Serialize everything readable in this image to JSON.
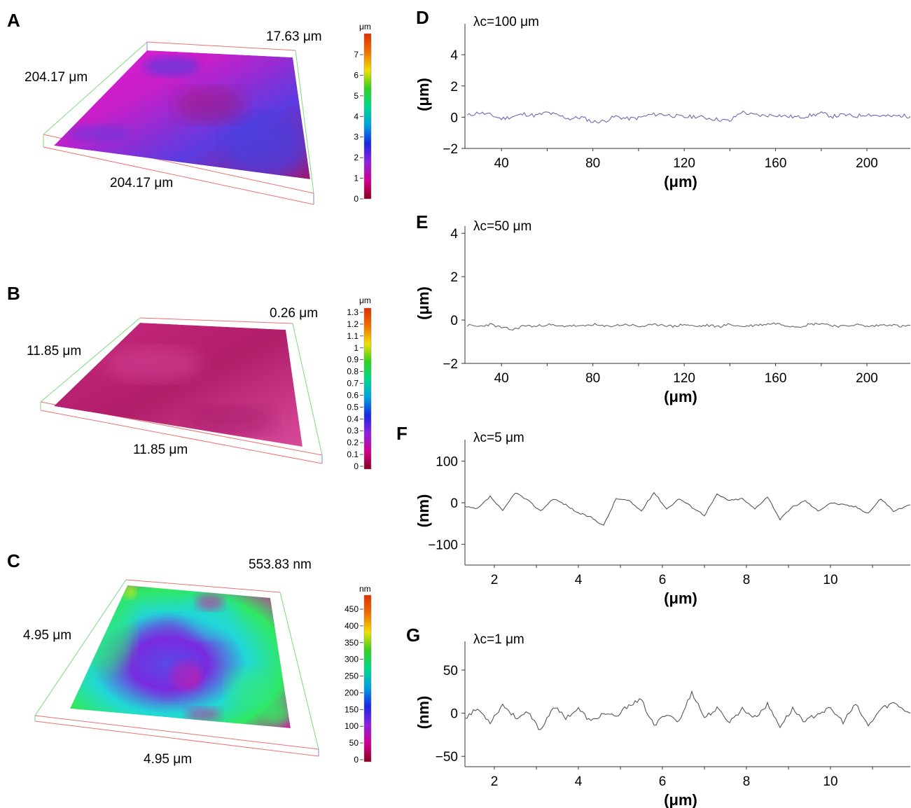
{
  "panels": {
    "A": {
      "letter": "A",
      "x_dim": "204.17 μm",
      "y_dim": "204.17 μm",
      "z_dim": "17.63 μm",
      "colorbar": {
        "unit": "μm",
        "ticks": [
          "0",
          "1",
          "2",
          "3",
          "4",
          "5",
          "6",
          "7"
        ]
      }
    },
    "B": {
      "letter": "B",
      "x_dim": "11.85 μm",
      "y_dim": "11.85 μm",
      "z_dim": "0.26 μm",
      "colorbar": {
        "unit": "μm",
        "ticks": [
          "0",
          "0.1",
          "0.2",
          "0.3",
          "0.4",
          "0.5",
          "0.6",
          "0.7",
          "0.8",
          "0.9",
          "1",
          "1.1",
          "1.2",
          "1.3"
        ]
      }
    },
    "C": {
      "letter": "C",
      "x_dim": "4.95 μm",
      "y_dim": "4.95 μm",
      "z_dim": "553.83 nm",
      "colorbar": {
        "unit": "nm",
        "ticks": [
          "0",
          "50",
          "100",
          "150",
          "200",
          "250",
          "300",
          "350",
          "400",
          "450"
        ]
      }
    }
  },
  "surface_colors": {
    "A": [
      "#e020d8",
      "#c81ec8",
      "#5a3ce0",
      "#a01870"
    ],
    "B": [
      "#c8287e",
      "#b01e6a",
      "#d84a9a"
    ],
    "C": [
      "#3a6af0",
      "#7a2ae0",
      "#20d8d8",
      "#30e860",
      "#d020a0"
    ]
  },
  "colorbar_gradient": [
    "#8b0020",
    "#d0008e",
    "#9020e0",
    "#1a28e0",
    "#00a0e0",
    "#00d890",
    "#30d020",
    "#f0e000",
    "#f07000",
    "#e03000"
  ],
  "chart_data": [
    {
      "type": "line",
      "letter": "D",
      "title": "λc=100 μm",
      "xlabel": "(μm)",
      "ylabel": "(μm)",
      "xlim": [
        24,
        219
      ],
      "ylim": [
        -2,
        5.8
      ],
      "xticks": [
        40,
        80,
        120,
        160,
        200
      ],
      "yticks": [
        -2,
        0,
        2,
        4
      ],
      "ytick_labels": [
        "−2",
        "0",
        "2",
        "4"
      ],
      "color": "#6a6ab0",
      "seed": 11,
      "amplitude": 0.25,
      "x": [
        25,
        30,
        35,
        40,
        45,
        50,
        55,
        60,
        65,
        70,
        75,
        80,
        85,
        90,
        95,
        100,
        105,
        110,
        115,
        120,
        125,
        130,
        135,
        140,
        145,
        150,
        155,
        160,
        165,
        170,
        175,
        180,
        185,
        190,
        195,
        200,
        205,
        210,
        215,
        219
      ],
      "y": [
        0.1,
        0.3,
        0.15,
        -0.1,
        0.05,
        0.2,
        0.1,
        0.3,
        0.1,
        -0.1,
        0.0,
        -0.3,
        -0.25,
        0.05,
        -0.1,
        -0.05,
        0.15,
        0.2,
        0.1,
        0.0,
        0.05,
        -0.05,
        -0.15,
        -0.25,
        0.35,
        0.15,
        0.1,
        0.15,
        0.05,
        0.0,
        0.1,
        0.25,
        0.05,
        0.15,
        0.05,
        0.2,
        0.1,
        0.05,
        0.1,
        0.05
      ]
    },
    {
      "type": "line",
      "letter": "E",
      "title": "λc=50 μm",
      "xlabel": "(μm)",
      "ylabel": "(μm)",
      "xlim": [
        24,
        219
      ],
      "ylim": [
        -2,
        4.2
      ],
      "xticks": [
        40,
        80,
        120,
        160,
        200
      ],
      "yticks": [
        -2,
        0,
        2,
        4
      ],
      "ytick_labels": [
        "−2",
        "0",
        "2",
        "4"
      ],
      "color": "#666666",
      "seed": 23,
      "amplitude": 0.12,
      "x": [
        25,
        30,
        35,
        40,
        45,
        50,
        55,
        60,
        65,
        70,
        75,
        80,
        85,
        90,
        95,
        100,
        105,
        110,
        115,
        120,
        125,
        130,
        135,
        140,
        145,
        150,
        155,
        160,
        165,
        170,
        175,
        180,
        185,
        190,
        195,
        200,
        205,
        210,
        215,
        219
      ],
      "y": [
        -0.25,
        -0.3,
        -0.2,
        -0.35,
        -0.45,
        -0.25,
        -0.3,
        -0.2,
        -0.3,
        -0.25,
        -0.3,
        -0.2,
        -0.3,
        -0.25,
        -0.2,
        -0.3,
        -0.25,
        -0.2,
        -0.3,
        -0.2,
        -0.3,
        -0.25,
        -0.3,
        -0.2,
        -0.3,
        -0.25,
        -0.2,
        -0.15,
        -0.25,
        -0.3,
        -0.2,
        -0.15,
        -0.25,
        -0.3,
        -0.2,
        -0.3,
        -0.25,
        -0.2,
        -0.3,
        -0.25
      ]
    },
    {
      "type": "line",
      "letter": "F",
      "title": "λc=5 μm",
      "xlabel": "(μm)",
      "ylabel": "(nm)",
      "xlim": [
        1.3,
        11.9
      ],
      "ylim": [
        -150,
        145
      ],
      "xticks": [
        2,
        4,
        6,
        8,
        10
      ],
      "yticks": [
        -100,
        0,
        100
      ],
      "ytick_labels": [
        "−100",
        "0",
        "100"
      ],
      "color": "#555555",
      "seed": 37,
      "amplitude": 4,
      "x": [
        1.3,
        1.6,
        1.9,
        2.2,
        2.5,
        2.8,
        3.1,
        3.4,
        3.7,
        4.0,
        4.3,
        4.6,
        4.9,
        5.2,
        5.5,
        5.8,
        6.1,
        6.4,
        6.7,
        7.0,
        7.3,
        7.6,
        7.9,
        8.2,
        8.5,
        8.8,
        9.1,
        9.4,
        9.7,
        10.0,
        10.3,
        10.6,
        10.9,
        11.2,
        11.5,
        11.9
      ],
      "y": [
        -10,
        -15,
        15,
        -20,
        25,
        5,
        -20,
        10,
        -5,
        -25,
        -35,
        -55,
        10,
        5,
        -20,
        25,
        -15,
        10,
        -10,
        -30,
        20,
        5,
        10,
        -15,
        15,
        -40,
        -10,
        5,
        -20,
        0,
        -5,
        -10,
        -25,
        10,
        -20,
        -5
      ]
    },
    {
      "type": "line",
      "letter": "G",
      "title": "λc=1 μm",
      "xlabel": "(μm)",
      "ylabel": "(nm)",
      "xlim": [
        1.3,
        11.9
      ],
      "ylim": [
        -62,
        80
      ],
      "xticks": [
        2,
        4,
        6,
        8,
        10
      ],
      "yticks": [
        -50,
        0,
        50
      ],
      "ytick_labels": [
        "−50",
        "0",
        "50"
      ],
      "color": "#555555",
      "seed": 53,
      "amplitude": 5,
      "x": [
        1.3,
        1.6,
        1.9,
        2.2,
        2.5,
        2.8,
        3.1,
        3.4,
        3.7,
        4.0,
        4.3,
        4.6,
        4.9,
        5.2,
        5.5,
        5.8,
        6.1,
        6.4,
        6.7,
        7.0,
        7.3,
        7.6,
        7.9,
        8.2,
        8.5,
        8.8,
        9.1,
        9.4,
        9.7,
        10.0,
        10.3,
        10.6,
        10.9,
        11.2,
        11.5,
        11.9
      ],
      "y": [
        -5,
        5,
        -10,
        10,
        -5,
        0,
        -20,
        8,
        -5,
        5,
        -10,
        0,
        -5,
        10,
        15,
        -15,
        0,
        -10,
        25,
        -5,
        5,
        -10,
        5,
        -5,
        10,
        -15,
        5,
        -10,
        0,
        5,
        -10,
        10,
        -15,
        5,
        12,
        0
      ]
    }
  ]
}
